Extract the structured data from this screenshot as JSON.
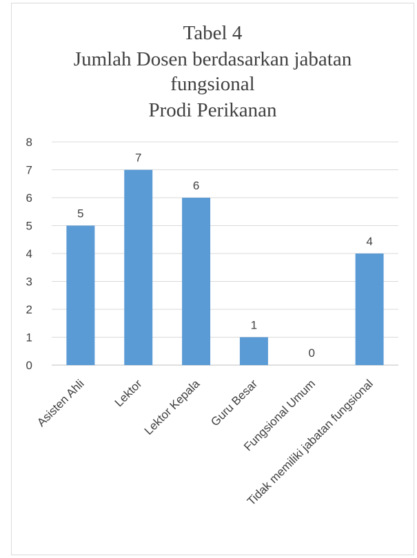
{
  "chart_data": {
    "type": "bar",
    "title_lines": [
      "Tabel  4",
      "Jumlah Dosen berdasarkan jabatan",
      "fungsional",
      "Prodi Perikanan"
    ],
    "categories": [
      "Asisten Ahli",
      "Lektor",
      "Lektor Kepala",
      "Guru Besar",
      "Fungsional Umum",
      "Tidak memiliki jabatan fungsional"
    ],
    "values": [
      5,
      7,
      6,
      1,
      0,
      4
    ],
    "ylim": [
      0,
      8
    ],
    "yticks": [
      0,
      1,
      2,
      3,
      4,
      5,
      6,
      7,
      8
    ],
    "grid": true,
    "legend": "none",
    "bar_color": "#5b9bd5",
    "data_labels": true
  }
}
